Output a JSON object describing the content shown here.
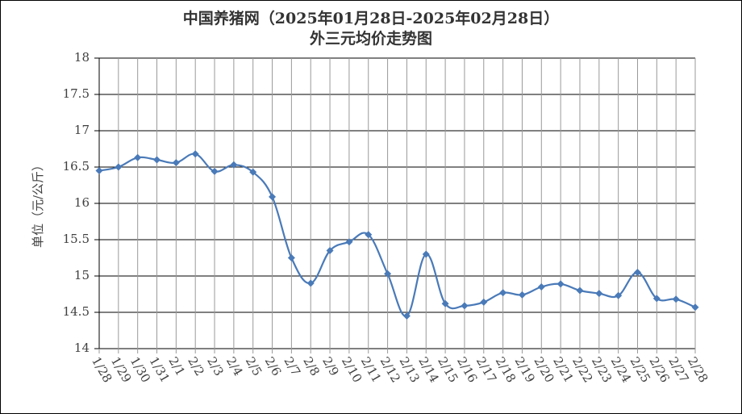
{
  "chart_data": {
    "type": "line",
    "title": "中国养猪网（2025年01月28日-2025年02月28日）",
    "subtitle": "外三元均价走势图",
    "y_label": "单位（元/公斤）",
    "categories": [
      "1/28",
      "1/29",
      "1/30",
      "1/31",
      "2/1",
      "2/2",
      "2/3",
      "2/4",
      "2/5",
      "2/6",
      "2/7",
      "2/8",
      "2/9",
      "2/10",
      "2/11",
      "2/12",
      "2/13",
      "2/14",
      "2/15",
      "2/16",
      "2/17",
      "2/18",
      "2/19",
      "2/20",
      "2/21",
      "2/22",
      "2/23",
      "2/24",
      "2/25",
      "2/26",
      "2/27",
      "2/28"
    ],
    "values": [
      16.45,
      16.5,
      16.63,
      16.6,
      16.56,
      16.68,
      16.44,
      16.53,
      16.43,
      16.09,
      15.25,
      14.9,
      15.35,
      15.47,
      15.57,
      15.03,
      14.45,
      15.3,
      14.62,
      14.59,
      14.64,
      14.77,
      14.74,
      14.85,
      14.89,
      14.8,
      14.76,
      14.73,
      15.05,
      14.69,
      14.68,
      14.57
    ],
    "color": "#4a7ab8",
    "ylim": [
      14,
      18
    ],
    "yticks": [
      14,
      14.5,
      15,
      15.5,
      16,
      16.5,
      17,
      17.5,
      18
    ],
    "grid": true
  }
}
